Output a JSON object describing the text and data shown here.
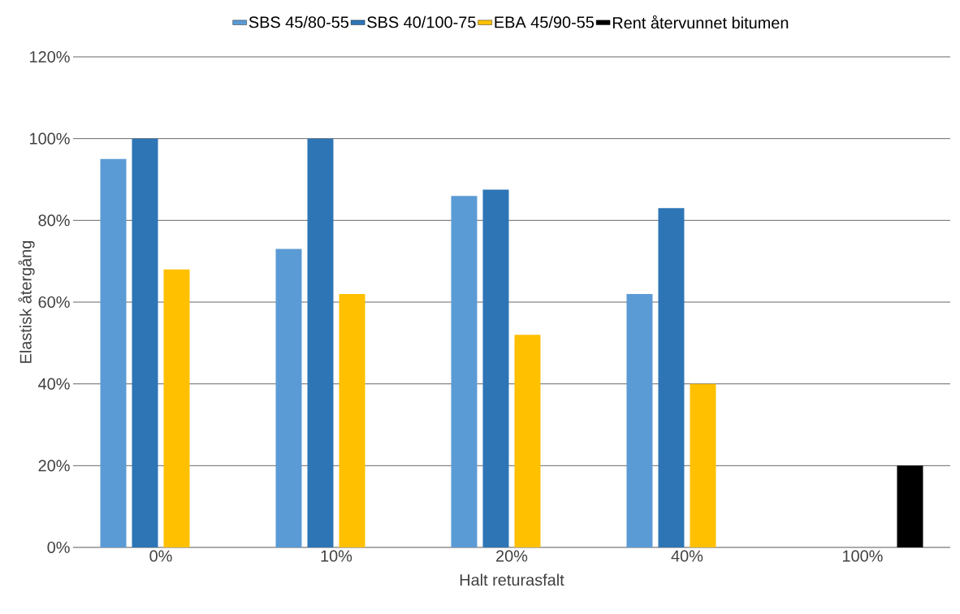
{
  "chart_data": {
    "type": "bar",
    "xlabel": "Halt returasfalt",
    "ylabel": "Elastisk återgång",
    "categories": [
      "0%",
      "10%",
      "20%",
      "40%",
      "100%"
    ],
    "series": [
      {
        "name": "SBS 45/80-55",
        "color": "#5b9bd5",
        "values": [
          95,
          73,
          86,
          62,
          null
        ]
      },
      {
        "name": "SBS 40/100-75",
        "color": "#2e75b6",
        "values": [
          100,
          100,
          87.5,
          83,
          null
        ]
      },
      {
        "name": "EBA 45/90-55",
        "color": "#ffc000",
        "values": [
          68,
          62,
          52,
          40,
          null
        ]
      },
      {
        "name": "Rent återvunnet bitumen",
        "color": "#000000",
        "values": [
          null,
          null,
          null,
          null,
          20
        ]
      }
    ],
    "ylim": [
      0,
      120
    ],
    "yticks": [
      {
        "value": 0,
        "label": "0%"
      },
      {
        "value": 20,
        "label": "20%"
      },
      {
        "value": 40,
        "label": "40%"
      },
      {
        "value": 60,
        "label": "60%"
      },
      {
        "value": 80,
        "label": "80%"
      },
      {
        "value": 100,
        "label": "100%"
      },
      {
        "value": 120,
        "label": "120%"
      }
    ],
    "grid": "y",
    "legend": "top"
  }
}
